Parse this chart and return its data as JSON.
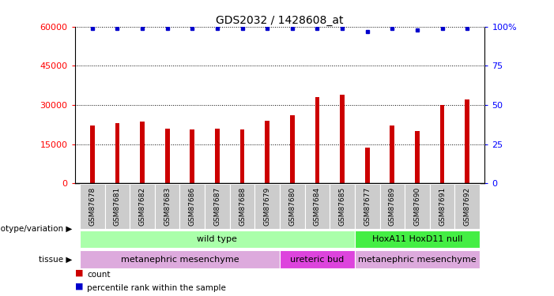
{
  "title": "GDS2032 / 1428608_at",
  "samples": [
    "GSM87678",
    "GSM87681",
    "GSM87682",
    "GSM87683",
    "GSM87686",
    "GSM87687",
    "GSM87688",
    "GSM87679",
    "GSM87680",
    "GSM87684",
    "GSM87685",
    "GSM87677",
    "GSM87689",
    "GSM87690",
    "GSM87691",
    "GSM87692"
  ],
  "counts": [
    22000,
    23000,
    23500,
    21000,
    20500,
    21000,
    20500,
    24000,
    26000,
    33000,
    34000,
    13500,
    22000,
    20000,
    30000,
    32000
  ],
  "percentiles": [
    99,
    99,
    99,
    99,
    99,
    99,
    99,
    99,
    99,
    99,
    99,
    97,
    99,
    98,
    99,
    99
  ],
  "ylim_left": [
    0,
    60000
  ],
  "ylim_right": [
    0,
    100
  ],
  "yticks_left": [
    0,
    15000,
    30000,
    45000,
    60000
  ],
  "yticks_right": [
    0,
    25,
    50,
    75,
    100
  ],
  "ytick_right_labels": [
    "0",
    "25",
    "50",
    "75",
    "100%"
  ],
  "bar_color": "#cc0000",
  "dot_color": "#0000cc",
  "bar_width": 0.18,
  "genotype_groups": [
    {
      "label": "wild type",
      "start": 0,
      "end": 11,
      "color": "#aaffaa"
    },
    {
      "label": "HoxA11 HoxD11 null",
      "start": 11,
      "end": 16,
      "color": "#44ee44"
    }
  ],
  "tissue_groups": [
    {
      "label": "metanephric mesenchyme",
      "start": 0,
      "end": 8,
      "color": "#ddaadd"
    },
    {
      "label": "ureteric bud",
      "start": 8,
      "end": 11,
      "color": "#dd44dd"
    },
    {
      "label": "metanephric mesenchyme",
      "start": 11,
      "end": 16,
      "color": "#ddaadd"
    }
  ],
  "legend_count_color": "#cc0000",
  "legend_pct_color": "#0000cc",
  "background_color": "#ffffff",
  "tick_bg_color": "#cccccc",
  "grid_color": "#000000",
  "spine_color": "#000000"
}
